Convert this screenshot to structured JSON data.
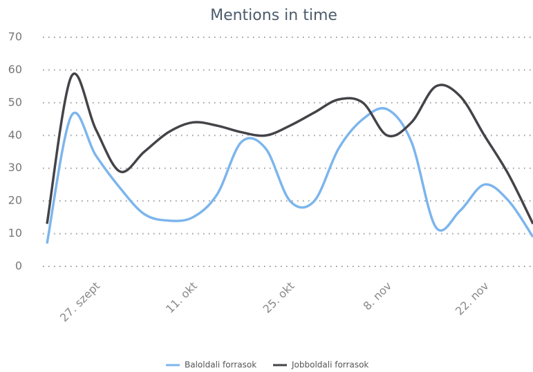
{
  "chart_data": {
    "type": "line",
    "title": "Mentions in time",
    "categories": [
      null,
      null,
      "27. szept",
      null,
      null,
      null,
      "11. okt",
      null,
      null,
      null,
      "25. okt",
      null,
      null,
      null,
      "8. nov",
      null,
      null,
      null,
      "22. nov",
      null,
      null
    ],
    "series": [
      {
        "name": "Baloldali forrasok",
        "color": "#7cb5ec",
        "values": [
          7,
          46,
          34,
          24,
          16,
          14,
          15,
          22,
          38,
          36,
          20,
          20,
          36,
          45,
          48,
          38,
          12,
          17,
          25,
          20,
          9
        ]
      },
      {
        "name": "Jobboldali forrasok",
        "color": "#434348",
        "values": [
          13,
          58,
          42,
          29,
          35,
          41,
          44,
          43,
          41,
          40,
          43,
          47,
          51,
          50,
          40,
          44,
          55,
          52,
          40,
          28,
          13
        ]
      }
    ],
    "ylim": [
      0,
      70
    ],
    "yticks": [
      0,
      10,
      20,
      30,
      40,
      50,
      60,
      70
    ],
    "grid": true,
    "legend": "bottom"
  }
}
